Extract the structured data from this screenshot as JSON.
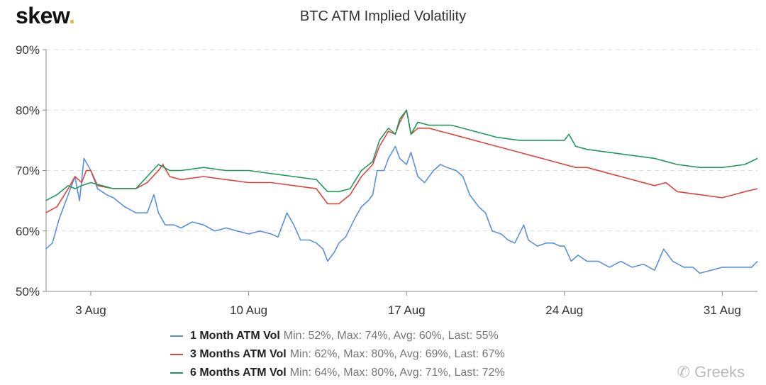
{
  "logo": "skew.",
  "watermark": "Greeks",
  "chart_data": {
    "type": "line",
    "title": "BTC ATM Implied Volatility",
    "xlabel": "",
    "ylabel": "",
    "x_unit": "day of August (2020)",
    "xlim": [
      1.02,
      32.56
    ],
    "ylim": [
      50,
      90
    ],
    "yticks": [
      50,
      60,
      70,
      80,
      90
    ],
    "ytick_labels": [
      "50%",
      "60%",
      "70%",
      "80%",
      "90%"
    ],
    "xticks": [
      3,
      10,
      17,
      24,
      31
    ],
    "xtick_labels": [
      "3 Aug",
      "10 Aug",
      "17 Aug",
      "24 Aug",
      "31 Aug"
    ],
    "grid": "horizontal dashed",
    "legend_position": "bottom",
    "series": [
      {
        "name": "1 Month ATM Vol",
        "stats": "Min: 52%, Max: 74%, Avg: 60%, Last: 55%",
        "color": "#5b8fe0",
        "x": [
          1.0,
          1.3,
          1.6,
          2.0,
          2.3,
          2.5,
          2.7,
          3.0,
          3.3,
          3.7,
          4.0,
          4.5,
          5.0,
          5.5,
          5.8,
          6.0,
          6.3,
          6.7,
          7.0,
          7.5,
          8.0,
          8.5,
          9.0,
          9.5,
          10.0,
          10.5,
          11.0,
          11.3,
          11.7,
          12.0,
          12.3,
          12.7,
          13.0,
          13.3,
          13.5,
          13.8,
          14.0,
          14.3,
          14.7,
          15.0,
          15.3,
          15.5,
          15.7,
          16.0,
          16.2,
          16.5,
          16.7,
          17.0,
          17.2,
          17.5,
          17.8,
          18.2,
          18.5,
          18.8,
          19.2,
          19.5,
          19.8,
          20.2,
          20.5,
          20.8,
          21.2,
          21.5,
          21.8,
          22.2,
          22.4,
          22.8,
          23.2,
          23.5,
          23.8,
          24.0,
          24.3,
          24.6,
          25.0,
          25.5,
          26.0,
          26.5,
          27.0,
          27.5,
          28.0,
          28.4,
          28.8,
          29.3,
          29.7,
          30.0,
          30.5,
          31.0,
          31.5,
          32.0,
          32.3,
          32.56
        ],
        "y": [
          57,
          58,
          62,
          66,
          69,
          65,
          72,
          70,
          67,
          66,
          65.5,
          64,
          63,
          63,
          66,
          63,
          61,
          61,
          60.5,
          61.5,
          61,
          60,
          60.5,
          60,
          59.5,
          60,
          59.5,
          59,
          63,
          61,
          58.5,
          58.5,
          58,
          57,
          55,
          56.5,
          58,
          59,
          62,
          64,
          65,
          66,
          70,
          70,
          72,
          74,
          72,
          71,
          73,
          69,
          68,
          70,
          71,
          70.5,
          70,
          69,
          66,
          64,
          63,
          60,
          59.5,
          58.5,
          58,
          61,
          58.5,
          57.5,
          58,
          58,
          57.5,
          57.5,
          55,
          56,
          55,
          55,
          54,
          55,
          54,
          54.5,
          53.5,
          57,
          55,
          54,
          54,
          53,
          53.5,
          54,
          54,
          54,
          54,
          55
        ]
      },
      {
        "name": "3 Months ATM Vol",
        "stats": "Min: 62%, Max: 80%, Avg: 69%, Last: 67%",
        "color": "#e0443c",
        "x": [
          1.0,
          1.5,
          2.0,
          2.3,
          2.6,
          2.8,
          3.0,
          3.3,
          4.0,
          5.0,
          5.5,
          6.0,
          6.2,
          6.5,
          7.0,
          8.0,
          9.0,
          10.0,
          11.0,
          12.0,
          13.0,
          13.5,
          14.0,
          14.5,
          15.0,
          15.5,
          15.8,
          16.2,
          16.5,
          16.7,
          17.0,
          17.2,
          17.5,
          18.0,
          18.5,
          19.0,
          20.0,
          21.0,
          22.0,
          22.5,
          23.0,
          24.0,
          24.5,
          25.0,
          26.0,
          27.0,
          28.0,
          28.5,
          29.0,
          30.0,
          31.0,
          31.5,
          32.0,
          32.56
        ],
        "y": [
          63,
          64,
          67,
          69,
          68,
          70,
          70,
          67.5,
          67,
          67,
          68,
          70,
          71,
          69,
          68.5,
          69,
          68.5,
          68,
          68,
          67.5,
          67,
          64.5,
          64.5,
          66,
          69,
          71,
          74,
          76.5,
          76,
          78,
          80,
          76,
          77,
          77,
          76.5,
          76,
          75,
          74,
          73,
          72.5,
          72,
          71,
          70.5,
          70.5,
          69.5,
          68.5,
          67.5,
          68,
          66.5,
          66,
          65.5,
          66,
          66.5,
          67
        ]
      },
      {
        "name": "6 Months ATM Vol",
        "stats": "Min: 64%, Max: 80%, Avg: 71%, Last: 72%",
        "color": "#1f9a5a",
        "x": [
          1.0,
          1.5,
          2.0,
          2.3,
          2.6,
          3.0,
          3.5,
          4.0,
          5.0,
          5.5,
          6.0,
          6.5,
          7.0,
          8.0,
          9.0,
          10.0,
          11.0,
          12.0,
          13.0,
          13.5,
          14.0,
          14.5,
          15.0,
          15.5,
          15.8,
          16.2,
          16.5,
          16.7,
          17.0,
          17.2,
          17.5,
          18.0,
          19.0,
          20.0,
          21.0,
          22.0,
          23.0,
          24.0,
          24.2,
          24.5,
          25.0,
          26.0,
          27.0,
          28.0,
          28.5,
          29.0,
          30.0,
          31.0,
          32.0,
          32.56
        ],
        "y": [
          65,
          66,
          67.5,
          67,
          67.5,
          68,
          67.5,
          67,
          67,
          69,
          71,
          70,
          70,
          70.5,
          70,
          70,
          69.5,
          69,
          68.5,
          66.5,
          66.5,
          67,
          70,
          71.5,
          75,
          77,
          76,
          78.5,
          80,
          76,
          78,
          77.5,
          77.5,
          76.5,
          75.5,
          75,
          75,
          75,
          76,
          74,
          73.5,
          73,
          72.5,
          72,
          71.5,
          71,
          70.5,
          70.5,
          71,
          72
        ]
      }
    ]
  }
}
